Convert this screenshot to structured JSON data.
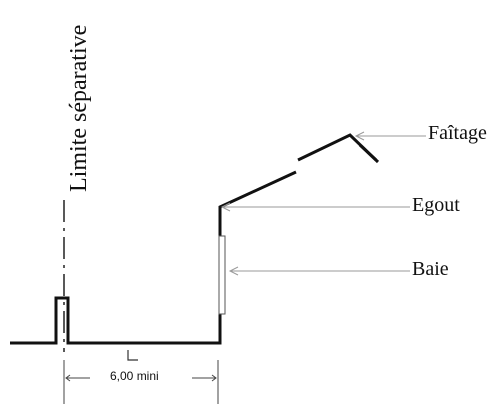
{
  "labels": {
    "boundary": "Limite séparative",
    "ridge": "Faîtage",
    "eaves": "Egout",
    "opening": "Baie",
    "distance": "6,00 mini"
  },
  "colors": {
    "line": "#111111",
    "leader": "#9a9a9a",
    "dimension": "#444444"
  }
}
